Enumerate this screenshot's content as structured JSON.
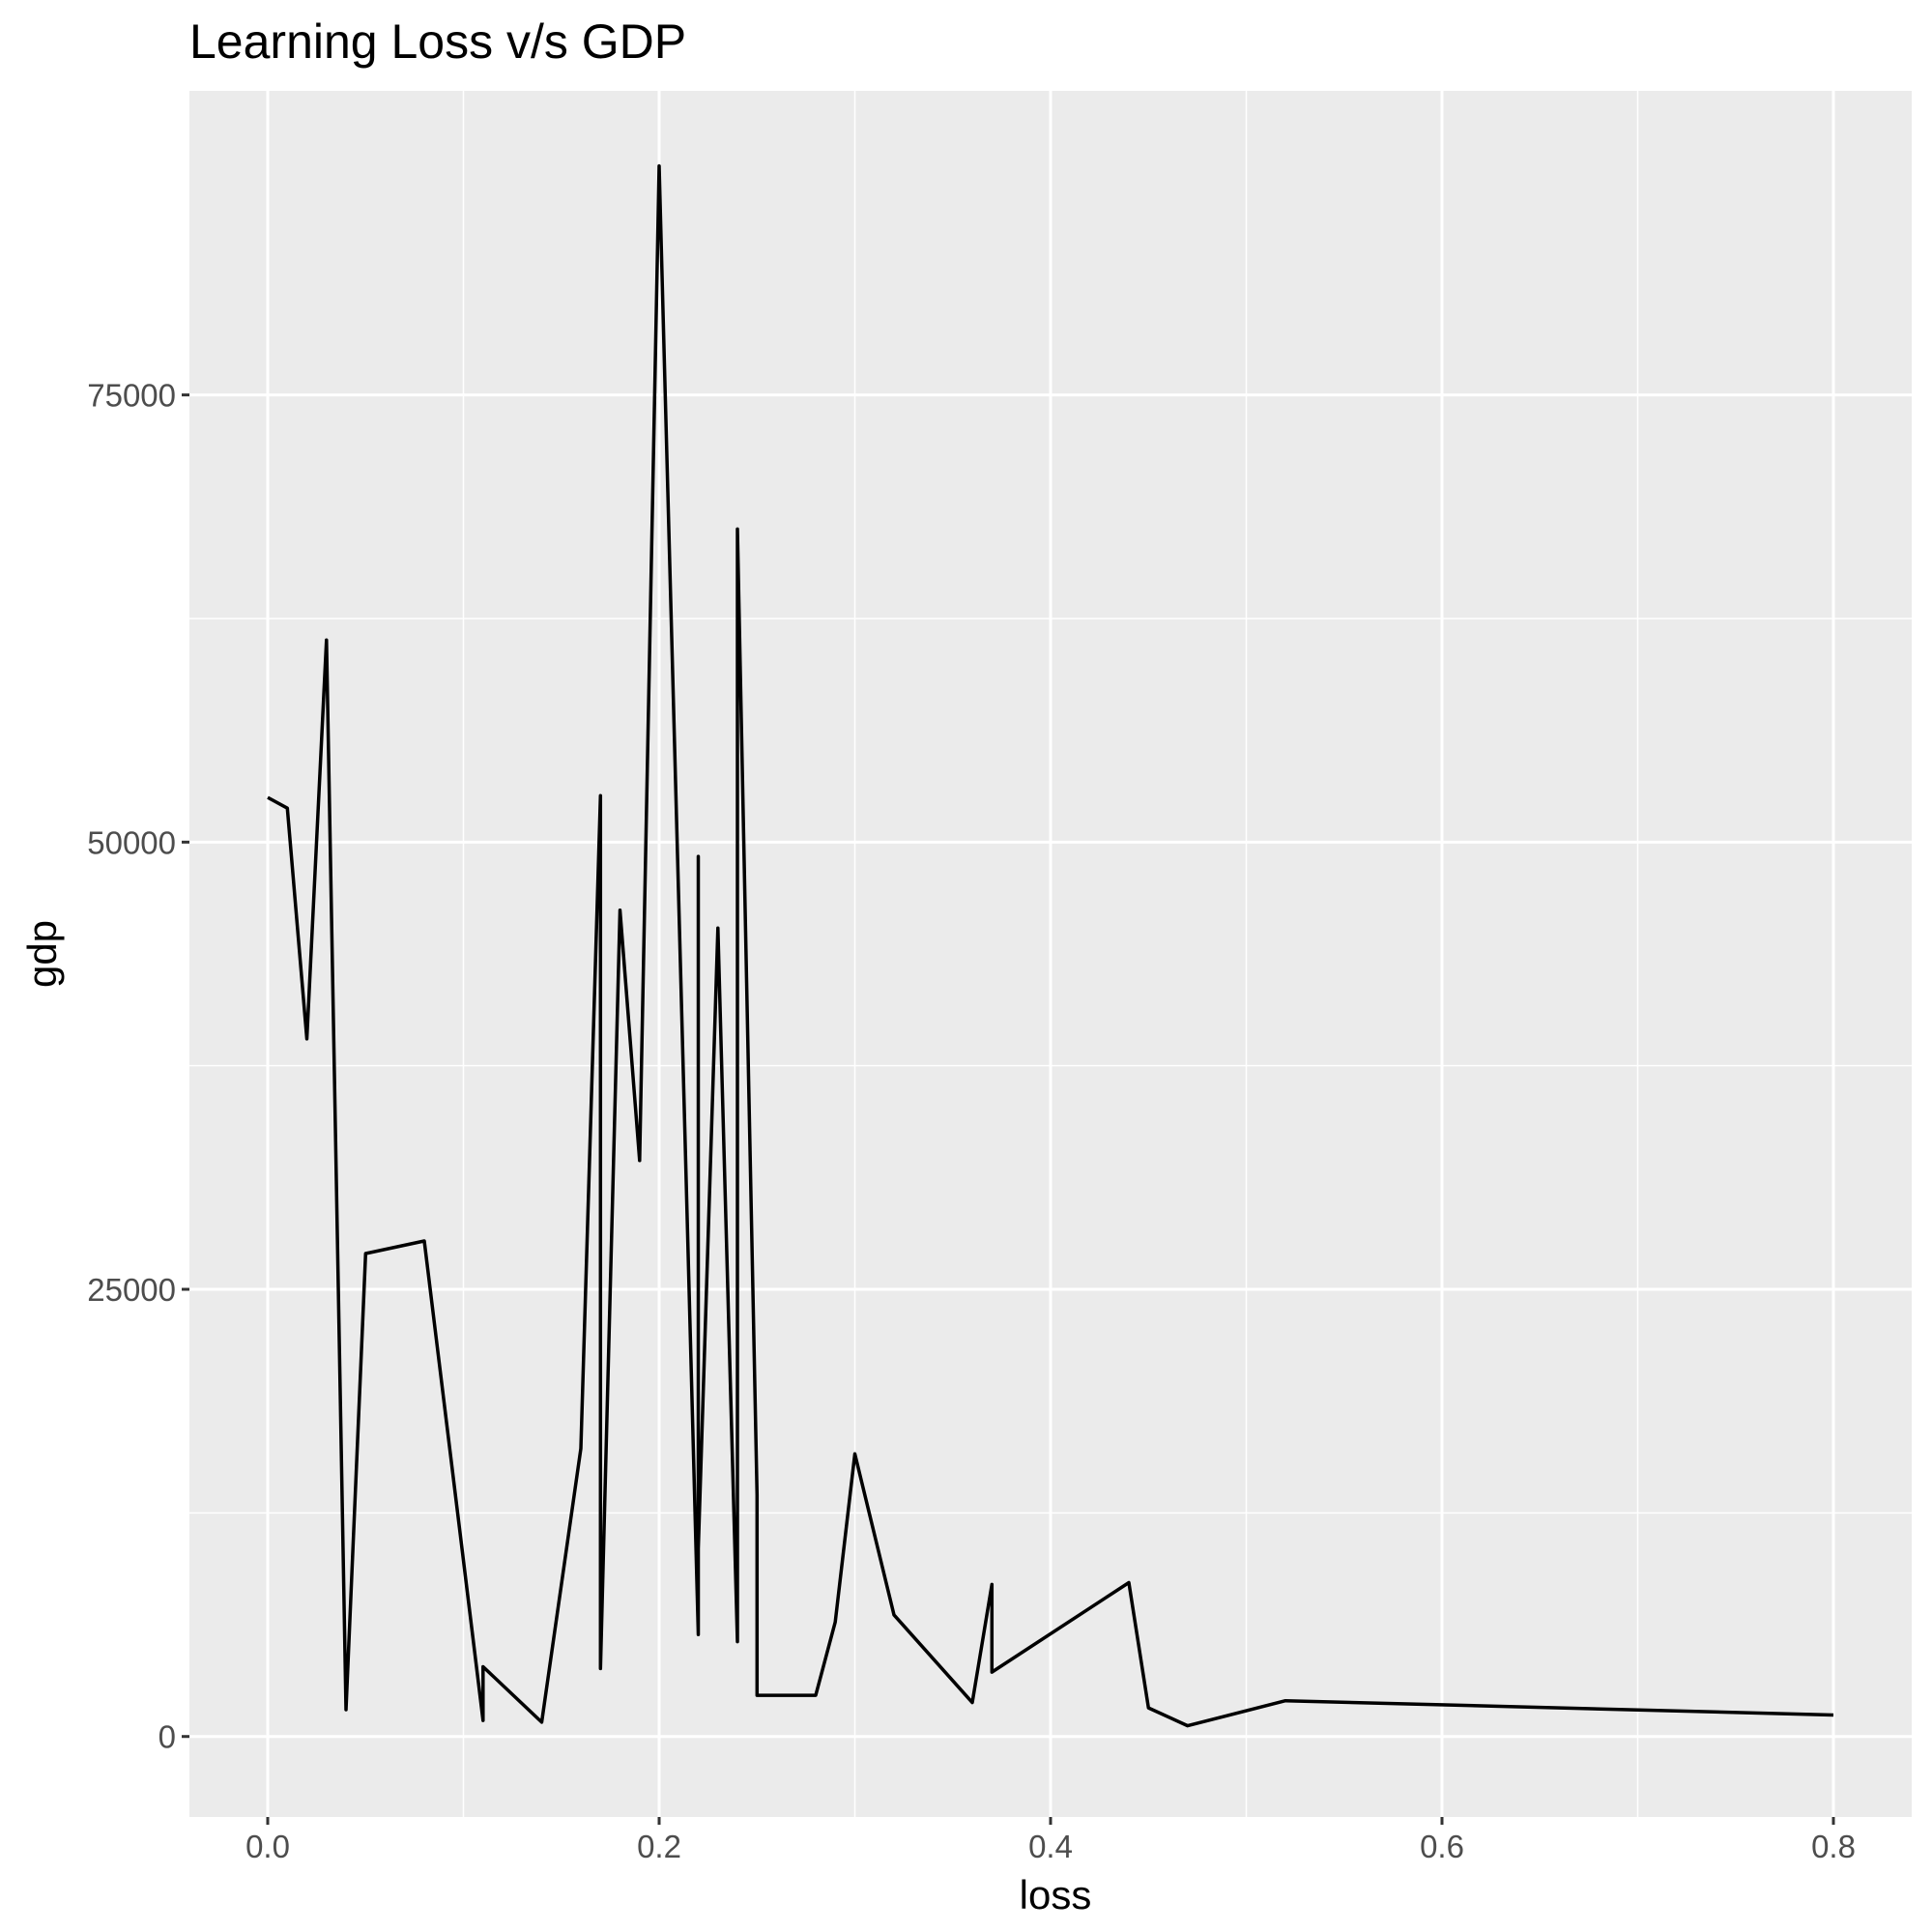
{
  "chart_data": {
    "type": "line",
    "title": "Learning Loss v/s GDP",
    "xlabel": "loss",
    "ylabel": "gdp",
    "xlim": [
      -0.04,
      0.84
    ],
    "ylim": [
      -4500,
      92000
    ],
    "x_ticks": [
      0.0,
      0.2,
      0.4,
      0.6,
      0.8
    ],
    "x_tick_labels": [
      "0.0",
      "0.2",
      "0.4",
      "0.6",
      "0.8"
    ],
    "y_ticks": [
      0,
      25000,
      50000,
      75000
    ],
    "y_tick_labels": [
      "0",
      "25000",
      "50000",
      "75000"
    ],
    "grid": true,
    "legend": "none",
    "colors": {
      "panel": "#ebebeb",
      "grid": "#ffffff",
      "line": "#000000",
      "tick": "#333333"
    },
    "series": [
      {
        "points": [
          [
            0.0,
            52500
          ],
          [
            0.01,
            51900
          ],
          [
            0.02,
            39000
          ],
          [
            0.03,
            61300
          ],
          [
            0.04,
            1500
          ],
          [
            0.05,
            27000
          ],
          [
            0.08,
            27700
          ],
          [
            0.11,
            900
          ],
          [
            0.11,
            3900
          ],
          [
            0.14,
            800
          ],
          [
            0.16,
            16100
          ],
          [
            0.17,
            52600
          ],
          [
            0.17,
            3800
          ],
          [
            0.18,
            46200
          ],
          [
            0.19,
            32200
          ],
          [
            0.2,
            87800
          ],
          [
            0.22,
            5700
          ],
          [
            0.22,
            49200
          ],
          [
            0.22,
            10500
          ],
          [
            0.23,
            45200
          ],
          [
            0.24,
            5300
          ],
          [
            0.24,
            67500
          ],
          [
            0.25,
            13500
          ],
          [
            0.25,
            2300
          ],
          [
            0.28,
            2300
          ],
          [
            0.29,
            6400
          ],
          [
            0.3,
            15800
          ],
          [
            0.32,
            6800
          ],
          [
            0.36,
            1900
          ],
          [
            0.37,
            8500
          ],
          [
            0.37,
            3600
          ],
          [
            0.44,
            8600
          ],
          [
            0.45,
            1600
          ],
          [
            0.47,
            600
          ],
          [
            0.52,
            2000
          ],
          [
            0.8,
            1200
          ]
        ]
      }
    ]
  }
}
